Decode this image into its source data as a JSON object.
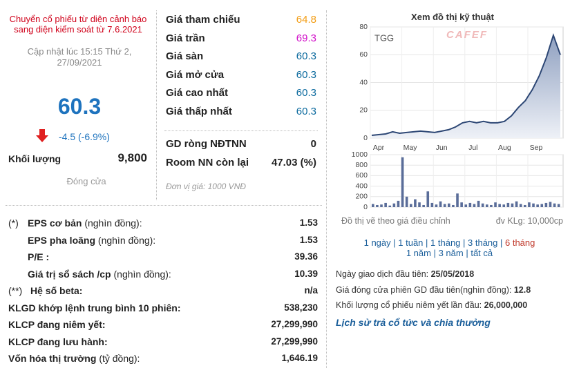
{
  "notice": "Chuyển cổ phiếu từ diện cảnh báo sang diện kiểm soát từ 7.6.2021",
  "updated": "Cập nhật lúc 15:15 Thứ 2, 27/09/2021",
  "price": "60.3",
  "change": "-4.5 (-6.9%)",
  "volume": {
    "label": "Khối lượng",
    "value": "9,800"
  },
  "status": "Đóng cửa",
  "prices": [
    {
      "label": "Giá tham chiếu",
      "value": "64.8",
      "color": "#f39c12"
    },
    {
      "label": "Giá trần",
      "value": "69.3",
      "color": "#d211c9"
    },
    {
      "label": "Giá sàn",
      "value": "60.3",
      "color": "#0b6a9e"
    },
    {
      "label": "Giá mở cửa",
      "value": "60.3",
      "color": "#0b6a9e"
    },
    {
      "label": "Giá cao nhất",
      "value": "60.3",
      "color": "#0b6a9e"
    },
    {
      "label": "Giá thấp nhất",
      "value": "60.3",
      "color": "#0b6a9e"
    }
  ],
  "foreign": [
    {
      "label": "GD ròng NĐTNN",
      "value": "0"
    },
    {
      "label": "Room NN còn lại",
      "value": "47.03 (%)"
    }
  ],
  "unit_note": "Đơn vị giá: 1000 VNĐ",
  "chart": {
    "title": "Xem đồ thị kỹ thuật",
    "symbol": "TGG",
    "watermark": "CAFEF",
    "months": [
      "Apr",
      "May",
      "Jun",
      "Jul",
      "Aug",
      "Sep"
    ],
    "price_ylim": [
      0,
      80
    ],
    "price_yticks": [
      0,
      20,
      40,
      60,
      80
    ],
    "prices": [
      2,
      2.5,
      3,
      4.5,
      3.5,
      4,
      4.5,
      5,
      4.5,
      4,
      5,
      6,
      8,
      11,
      12,
      11,
      12,
      11,
      11,
      12,
      16,
      22,
      27,
      35,
      45,
      58,
      74,
      60
    ],
    "volume_ylim": [
      0,
      1000
    ],
    "volume_yticks": [
      0,
      200,
      400,
      600,
      800,
      1000
    ],
    "volumes": [
      60,
      40,
      50,
      80,
      30,
      70,
      120,
      950,
      200,
      60,
      150,
      90,
      40,
      300,
      80,
      50,
      110,
      60,
      70,
      40,
      260,
      90,
      50,
      80,
      60,
      120,
      70,
      50,
      40,
      90,
      60,
      50,
      80,
      70,
      110,
      60,
      40,
      90,
      70,
      50,
      60,
      80,
      100,
      70,
      60
    ],
    "line_color": "#2c4674",
    "bar_color": "#5a6d99",
    "note": "Đồ thị vẽ theo giá điều chỉnh",
    "unit": "đv KLg: 10,000cp"
  },
  "ranges": [
    [
      "1 ngày",
      "1 tuần",
      "1 tháng",
      "3 tháng",
      "6 tháng"
    ],
    [
      "1 năm",
      "3 năm",
      "tất cả"
    ]
  ],
  "listing": [
    {
      "label": "Ngày giao dịch đầu tiên:",
      "value": "25/05/2018"
    },
    {
      "label": "Giá đóng cửa phiên GD đầu tiên(nghìn đồng):",
      "value": "12.8"
    },
    {
      "label": "Khối lượng cổ phiếu niêm yết lần đầu:",
      "value": "26,000,000"
    }
  ],
  "dividend_link": "Lịch sử trả cổ tức và chia thưởng",
  "metrics": [
    {
      "prefix": "(*)",
      "label": "EPS cơ bản",
      "unit": "(nghìn đồng):",
      "value": "1.53"
    },
    {
      "label": "EPS pha loãng",
      "unit": "(nghìn đồng):",
      "value": "1.53"
    },
    {
      "label": "P/E :",
      "value": "39.36"
    },
    {
      "label": "Giá trị sổ sách /cp",
      "unit": "(nghìn đồng):",
      "value": "10.39"
    },
    {
      "prefix": "(**)",
      "label": "Hệ số beta:",
      "value": "n/a"
    },
    {
      "label": "KLGD khớp lệnh trung bình 10 phiên:",
      "value": "538,230"
    },
    {
      "label": "KLCP đang niêm yết:",
      "value": "27,299,990"
    },
    {
      "label": "KLCP đang lưu hành:",
      "value": "27,299,990"
    },
    {
      "label": "Vốn hóa thị trường",
      "unit": "(tỷ đồng):",
      "value": "1,646.19"
    }
  ]
}
